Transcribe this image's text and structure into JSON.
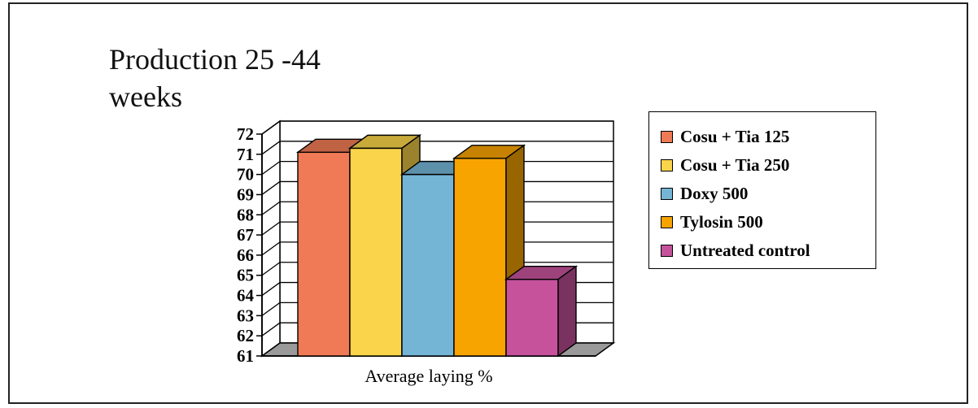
{
  "chart_data": {
    "type": "bar",
    "title": "Production 25 -44\nweeks",
    "xlabel": "Average laying %",
    "ylabel": "",
    "ylim": [
      61,
      72
    ],
    "yticks": [
      61,
      62,
      63,
      64,
      65,
      66,
      67,
      68,
      69,
      70,
      71,
      72
    ],
    "grid": true,
    "legend_position": "right",
    "categories": [
      "Average laying %"
    ],
    "series": [
      {
        "name": "Cosu + Tia 125",
        "values": [
          71.1
        ],
        "color": "#f07a55"
      },
      {
        "name": "Cosu + Tia 250",
        "values": [
          71.3
        ],
        "color": "#fad44a"
      },
      {
        "name": "Doxy 500",
        "values": [
          70.0
        ],
        "color": "#74b5d6"
      },
      {
        "name": "Tylosin 500",
        "values": [
          70.8
        ],
        "color": "#f7a300"
      },
      {
        "name": "Untreated control",
        "values": [
          64.8
        ],
        "color": "#c5529b"
      }
    ]
  }
}
